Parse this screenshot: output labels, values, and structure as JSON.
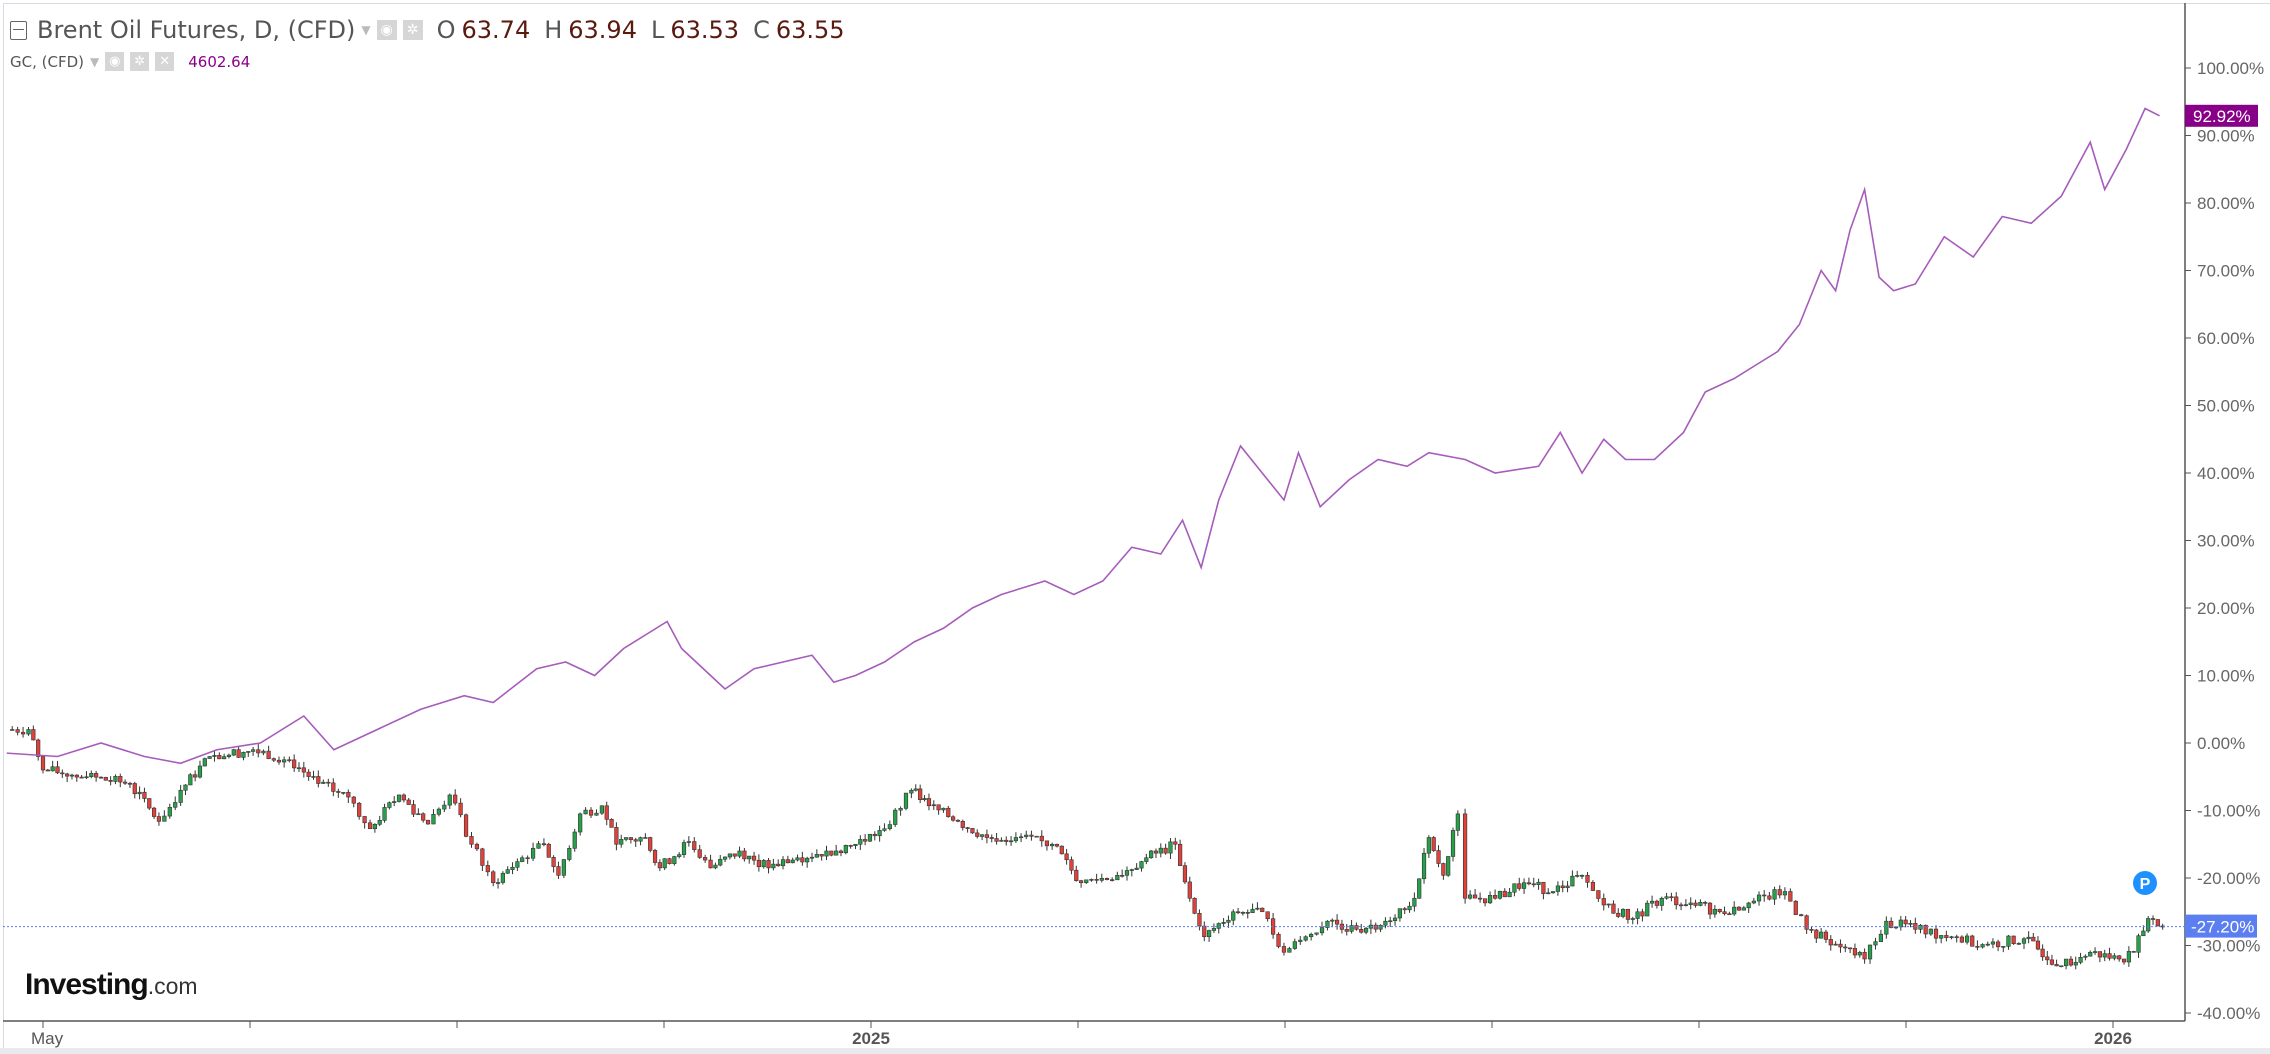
{
  "legend": {
    "main_title": "Brent Oil Futures, D, (CFD)",
    "o_label": "O",
    "o_value": "63.74",
    "h_label": "H",
    "h_value": "63.94",
    "l_label": "L",
    "l_value": "63.53",
    "c_label": "C",
    "c_value": "63.55",
    "compare_title": "GC, (CFD)",
    "compare_value": "4602.64"
  },
  "logo": {
    "brand": "Investing",
    "suffix": ".com"
  },
  "marker": {
    "label": "P"
  },
  "colors": {
    "gold_line": "#a65cba",
    "up": "#27a04a",
    "down": "#e0413a",
    "last_brent": "#5b7ff0",
    "last_gold": "#880088"
  },
  "chart_data": {
    "type": "line",
    "x_unit": "months since 2024-05-01",
    "y_unit": "percent change",
    "ylim": [
      -40,
      100
    ],
    "y_ticks": [
      "100.00%",
      "90.00%",
      "80.00%",
      "70.00%",
      "60.00%",
      "50.00%",
      "40.00%",
      "30.00%",
      "20.00%",
      "10.00%",
      "0.00%",
      "-10.00%",
      "-20.00%",
      "-30.00%",
      "-40.00%"
    ],
    "y_tick_values": [
      100,
      90,
      80,
      70,
      60,
      50,
      40,
      30,
      20,
      10,
      0,
      -10,
      -20,
      -30,
      -40
    ],
    "x_ticks": [
      {
        "t": 0,
        "label": "May"
      },
      {
        "t": 2,
        "label": ""
      },
      {
        "t": 4,
        "label": ""
      },
      {
        "t": 6,
        "label": ""
      },
      {
        "t": 8,
        "label": "2025"
      },
      {
        "t": 10,
        "label": ""
      },
      {
        "t": 12,
        "label": ""
      },
      {
        "t": 14,
        "label": ""
      },
      {
        "t": 16,
        "label": ""
      },
      {
        "t": 18,
        "label": ""
      },
      {
        "t": 20,
        "label": "2026"
      }
    ],
    "series": [
      {
        "name": "Brent Oil Futures",
        "kind": "candlestick",
        "last_label": "-27.20%",
        "points": [
          [
            -0.35,
            2
          ],
          [
            -0.14,
            2
          ],
          [
            0,
            -4
          ],
          [
            0.42,
            -5
          ],
          [
            0.84,
            -6
          ],
          [
            1.12,
            -11.6
          ],
          [
            1.33,
            -7
          ],
          [
            1.61,
            -2
          ],
          [
            2.03,
            -1
          ],
          [
            2.38,
            -2.5
          ],
          [
            2.66,
            -6
          ],
          [
            2.95,
            -8
          ],
          [
            3.16,
            -12.7
          ],
          [
            3.44,
            -7.7
          ],
          [
            3.72,
            -12
          ],
          [
            3.93,
            -7.7
          ],
          [
            4.14,
            -15
          ],
          [
            4.35,
            -20.7
          ],
          [
            4.63,
            -17
          ],
          [
            4.84,
            -15
          ],
          [
            4.98,
            -19.6
          ],
          [
            5.19,
            -10.5
          ],
          [
            5.4,
            -9.3
          ],
          [
            5.54,
            -15
          ],
          [
            5.82,
            -14
          ],
          [
            5.96,
            -18.5
          ],
          [
            6.24,
            -14.6
          ],
          [
            6.45,
            -18.5
          ],
          [
            6.73,
            -16
          ],
          [
            7.01,
            -18.5
          ],
          [
            7.29,
            -17
          ],
          [
            7.57,
            -16
          ],
          [
            7.85,
            -15
          ],
          [
            8.13,
            -12.7
          ],
          [
            8.39,
            -7
          ],
          [
            8.56,
            -9.3
          ],
          [
            8.84,
            -11.6
          ],
          [
            9.12,
            -14
          ],
          [
            9.4,
            -14
          ],
          [
            9.75,
            -15
          ],
          [
            10.03,
            -20.7
          ],
          [
            10.38,
            -19.6
          ],
          [
            10.66,
            -17
          ],
          [
            10.94,
            -15
          ],
          [
            11.08,
            -23
          ],
          [
            11.22,
            -28.7
          ],
          [
            11.5,
            -25
          ],
          [
            11.78,
            -25
          ],
          [
            11.99,
            -31
          ],
          [
            12.2,
            -28.7
          ],
          [
            12.41,
            -26.4
          ],
          [
            12.69,
            -27.6
          ],
          [
            12.97,
            -26.4
          ],
          [
            13.25,
            -23
          ],
          [
            13.39,
            -14
          ],
          [
            13.53,
            -19.6
          ],
          [
            13.67,
            -10.5
          ],
          [
            13.74,
            -23
          ],
          [
            14.03,
            -23
          ],
          [
            14.31,
            -20.7
          ],
          [
            14.59,
            -22
          ],
          [
            14.87,
            -19.6
          ],
          [
            15.08,
            -24
          ],
          [
            15.36,
            -26
          ],
          [
            15.64,
            -23
          ],
          [
            15.92,
            -23.7
          ],
          [
            16.2,
            -25
          ],
          [
            16.48,
            -23.7
          ],
          [
            16.83,
            -22
          ],
          [
            17.04,
            -27.6
          ],
          [
            17.32,
            -29.8
          ],
          [
            17.6,
            -32
          ],
          [
            17.81,
            -26.4
          ],
          [
            18.09,
            -27.6
          ],
          [
            18.44,
            -28.7
          ],
          [
            18.79,
            -29.8
          ],
          [
            19.14,
            -29
          ],
          [
            19.5,
            -33
          ],
          [
            19.78,
            -31
          ],
          [
            20.06,
            -32
          ],
          [
            20.2,
            -31
          ],
          [
            20.34,
            -26
          ],
          [
            20.48,
            -27.2
          ]
        ]
      },
      {
        "name": "GC",
        "kind": "line",
        "last_label": "92.92%",
        "points": [
          [
            -0.35,
            -1.5
          ],
          [
            0.14,
            -2
          ],
          [
            0.56,
            0
          ],
          [
            0.98,
            -2
          ],
          [
            1.33,
            -3
          ],
          [
            1.68,
            -1
          ],
          [
            2.1,
            0
          ],
          [
            2.52,
            4
          ],
          [
            2.81,
            -1
          ],
          [
            3.23,
            2
          ],
          [
            3.65,
            5
          ],
          [
            4.07,
            7
          ],
          [
            4.35,
            6
          ],
          [
            4.77,
            11
          ],
          [
            5.05,
            12
          ],
          [
            5.33,
            10
          ],
          [
            5.61,
            14
          ],
          [
            5.82,
            16
          ],
          [
            6.03,
            18
          ],
          [
            6.17,
            14
          ],
          [
            6.45,
            10
          ],
          [
            6.59,
            8
          ],
          [
            6.87,
            11
          ],
          [
            7.15,
            12
          ],
          [
            7.43,
            13
          ],
          [
            7.64,
            9
          ],
          [
            7.85,
            10
          ],
          [
            8.13,
            12
          ],
          [
            8.42,
            15
          ],
          [
            8.7,
            17
          ],
          [
            8.98,
            20
          ],
          [
            9.26,
            22
          ],
          [
            9.68,
            24
          ],
          [
            9.96,
            22
          ],
          [
            10.24,
            24
          ],
          [
            10.52,
            29
          ],
          [
            10.8,
            28
          ],
          [
            11.01,
            33
          ],
          [
            11.19,
            26
          ],
          [
            11.36,
            36
          ],
          [
            11.57,
            44
          ],
          [
            11.78,
            40
          ],
          [
            11.99,
            36
          ],
          [
            12.13,
            43
          ],
          [
            12.34,
            35
          ],
          [
            12.62,
            39
          ],
          [
            12.9,
            42
          ],
          [
            13.18,
            41
          ],
          [
            13.39,
            43
          ],
          [
            13.74,
            42
          ],
          [
            14.03,
            40
          ],
          [
            14.45,
            41
          ],
          [
            14.66,
            46
          ],
          [
            14.87,
            40
          ],
          [
            15.08,
            45
          ],
          [
            15.29,
            42
          ],
          [
            15.57,
            42
          ],
          [
            15.85,
            46
          ],
          [
            16.06,
            52
          ],
          [
            16.34,
            54
          ],
          [
            16.55,
            56
          ],
          [
            16.76,
            58
          ],
          [
            16.97,
            62
          ],
          [
            17.18,
            70
          ],
          [
            17.32,
            67
          ],
          [
            17.46,
            76
          ],
          [
            17.6,
            82
          ],
          [
            17.74,
            69
          ],
          [
            17.88,
            67
          ],
          [
            18.09,
            68
          ],
          [
            18.37,
            75
          ],
          [
            18.65,
            72
          ],
          [
            18.93,
            78
          ],
          [
            19.21,
            77
          ],
          [
            19.5,
            81
          ],
          [
            19.78,
            89
          ],
          [
            19.92,
            82
          ],
          [
            20.13,
            88
          ],
          [
            20.31,
            94
          ],
          [
            20.45,
            92.92
          ]
        ]
      }
    ]
  }
}
